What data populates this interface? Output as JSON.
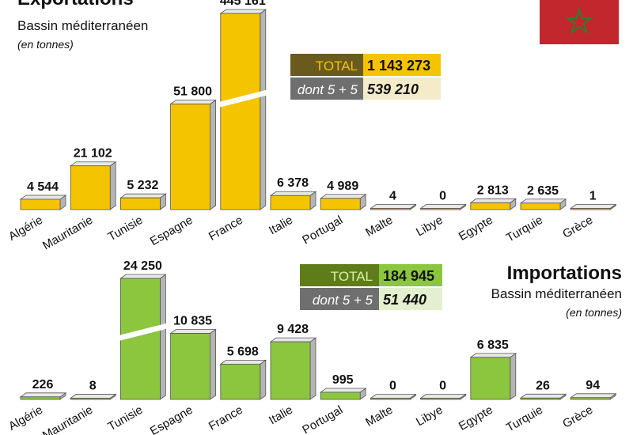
{
  "flag": {
    "red": "#c1272d",
    "star": "#2e7d32",
    "name": "flag-morocco-icon"
  },
  "colors": {
    "export": "#f5c400",
    "import": "#8cc63f",
    "export_dark": "#6b5a1e",
    "import_dark": "#5e7d1a",
    "dont": "#6f6f6f"
  },
  "exports": {
    "title": "Exportations",
    "subtitle": "Bassin méditerranéen",
    "unit": "(en tonnes)",
    "total_label": "TOTAL",
    "total_value": "1 143 273",
    "dont_label": "dont 5 + 5",
    "dont_value": "539 210"
  },
  "imports": {
    "title": "Importations",
    "subtitle": "Bassin méditerranéen",
    "unit": "(en tonnes)",
    "total_label": "TOTAL",
    "total_value": "184 945",
    "dont_label": "dont 5 + 5",
    "dont_value": "51 440"
  },
  "chart_data": [
    {
      "type": "bar",
      "title": "Exportations",
      "categories": [
        "Algérie",
        "Mauritanie",
        "Tunisie",
        "Espagne",
        "France",
        "Italie",
        "Portugal",
        "Malte",
        "Libye",
        "Egypte",
        "Turquie",
        "Grèce"
      ],
      "values": [
        4544,
        21102,
        5232,
        51800,
        445161,
        6378,
        4989,
        4,
        0,
        2813,
        2635,
        1
      ],
      "labels": [
        "4 544",
        "21 102",
        "5 232",
        "51 800",
        "445 161",
        "6 378",
        "4 989",
        "4",
        "0",
        "2 813",
        "2 635",
        "1"
      ],
      "broken_axis": "France",
      "grid": false
    },
    {
      "type": "bar",
      "title": "Importations",
      "categories": [
        "Algérie",
        "Mauritanie",
        "Tunisie",
        "Espagne",
        "France",
        "Italie",
        "Portugal",
        "Malte",
        "Libye",
        "Egypte",
        "Turquie",
        "Grèce"
      ],
      "values": [
        226,
        8,
        24250,
        10835,
        5698,
        9428,
        995,
        0,
        0,
        6835,
        26,
        94
      ],
      "labels": [
        "226",
        "8",
        "24 250",
        "10 835",
        "5 698",
        "9 428",
        "995",
        "0",
        "0",
        "6 835",
        "26",
        "94"
      ],
      "broken_axis": "Tunisie",
      "grid": false
    }
  ]
}
